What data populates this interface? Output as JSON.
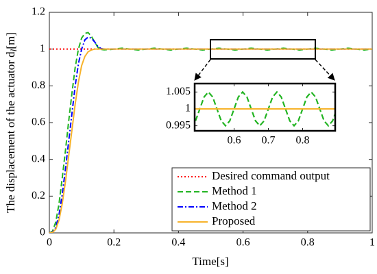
{
  "chart_data": [
    {
      "type": "line",
      "xlabel": "Time[s]",
      "ylabel": "The displacement of the actuator d",
      "ylabel_sub": "l",
      "ylabel_unit": "[m]",
      "xlim": [
        0,
        1
      ],
      "xticks": [
        0,
        0.2,
        0.4,
        0.6,
        0.8,
        1
      ],
      "ylim": [
        0,
        1.2
      ],
      "yticks": [
        0,
        0.2,
        0.4,
        0.6,
        0.8,
        1,
        1.2
      ],
      "grid": false,
      "legend": "lower right",
      "series": [
        {
          "name": "Desired command output",
          "color": "#ff0000",
          "style": "dotted",
          "x": [
            0,
            1
          ],
          "values": [
            1,
            1
          ]
        },
        {
          "name": "Method 1",
          "color": "#22b422",
          "style": "dashed",
          "x": [
            0,
            0.01,
            0.02,
            0.03,
            0.04,
            0.05,
            0.06,
            0.07,
            0.08,
            0.09,
            0.1,
            0.11,
            0.12,
            0.13,
            0.14,
            0.15,
            0.16,
            0.17,
            0.18,
            0.19,
            0.2,
            0.225,
            0.25,
            0.275,
            0.3,
            0.325,
            0.35,
            0.375,
            0.4,
            0.425,
            0.45,
            0.475,
            0.5,
            0.525,
            0.55,
            0.575,
            0.6,
            0.625,
            0.65,
            0.675,
            0.7,
            0.725,
            0.75,
            0.775,
            0.8,
            0.825,
            0.85,
            0.875,
            0.9,
            0.925,
            0.95,
            0.975,
            1
          ],
          "values": [
            0,
            0.01,
            0.06,
            0.16,
            0.3,
            0.45,
            0.61,
            0.76,
            0.9,
            1.0,
            1.06,
            1.085,
            1.09,
            1.07,
            1.04,
            1.01,
            0.998,
            0.996,
            0.997,
            0.998,
            1,
            1.005,
            1,
            0.995,
            1,
            1.005,
            1,
            0.995,
            1,
            1.005,
            1,
            0.995,
            1,
            1.005,
            1,
            0.995,
            1,
            1.005,
            1,
            0.995,
            1,
            1.005,
            1,
            0.995,
            1,
            1.005,
            1,
            0.995,
            1,
            1.005,
            1,
            0.995,
            1
          ]
        },
        {
          "name": "Method 2",
          "color": "#0000ff",
          "style": "dashdot",
          "x": [
            0,
            0.01,
            0.02,
            0.03,
            0.04,
            0.05,
            0.06,
            0.07,
            0.08,
            0.09,
            0.1,
            0.11,
            0.12,
            0.13,
            0.14,
            0.15,
            0.16,
            0.17,
            0.18,
            0.19,
            0.2,
            1
          ],
          "values": [
            0,
            0.005,
            0.03,
            0.1,
            0.21,
            0.35,
            0.5,
            0.65,
            0.8,
            0.92,
            1.0,
            1.05,
            1.065,
            1.06,
            1.04,
            1.015,
            1.003,
            1.0,
            1.0,
            1.0,
            1.0,
            1.0
          ]
        },
        {
          "name": "Proposed",
          "color": "#f7b32b",
          "style": "solid",
          "x": [
            0,
            0.01,
            0.02,
            0.03,
            0.04,
            0.05,
            0.06,
            0.07,
            0.08,
            0.09,
            0.1,
            0.11,
            0.12,
            0.13,
            0.14,
            0.15,
            0.16,
            0.17,
            0.18,
            0.19,
            0.2,
            1
          ],
          "values": [
            0,
            0.003,
            0.02,
            0.07,
            0.16,
            0.28,
            0.42,
            0.56,
            0.7,
            0.82,
            0.91,
            0.96,
            0.985,
            0.995,
            1.0,
            1,
            1,
            1,
            1,
            1,
            1,
            1
          ]
        }
      ]
    },
    {
      "type": "line",
      "xlim": [
        0.485,
        0.895
      ],
      "xticks": [
        0.6,
        0.7,
        0.8
      ],
      "ylim": [
        0.9935,
        1.0075
      ],
      "yticks": [
        0.995,
        1,
        1.005
      ],
      "grid": false,
      "series": [
        {
          "color": "#22b422",
          "style": "dashed",
          "x": [
            0.4875,
            0.5,
            0.5125,
            0.525,
            0.5375,
            0.55,
            0.5625,
            0.575,
            0.5875,
            0.6,
            0.6125,
            0.625,
            0.6375,
            0.65,
            0.6625,
            0.675,
            0.6875,
            0.7,
            0.7125,
            0.725,
            0.7375,
            0.75,
            0.7625,
            0.775,
            0.7875,
            0.8,
            0.8125,
            0.825,
            0.8375,
            0.85,
            0.8625,
            0.875,
            0.8875,
            0.9
          ],
          "values": [
            0.99646,
            1,
            1.00354,
            1.005,
            1.00354,
            1,
            0.99646,
            0.995,
            0.99646,
            1,
            1.00354,
            1.005,
            1.00354,
            1,
            0.99646,
            0.995,
            0.99646,
            1,
            1.00354,
            1.005,
            1.00354,
            1,
            0.99646,
            0.995,
            0.99646,
            1,
            1.00354,
            1.005,
            1.00354,
            1,
            0.99646,
            0.995,
            0.99646,
            1
          ]
        },
        {
          "color": "#f7b32b",
          "style": "solid",
          "x": [
            0.4875,
            0.9
          ],
          "values": [
            1,
            1
          ]
        }
      ]
    }
  ]
}
